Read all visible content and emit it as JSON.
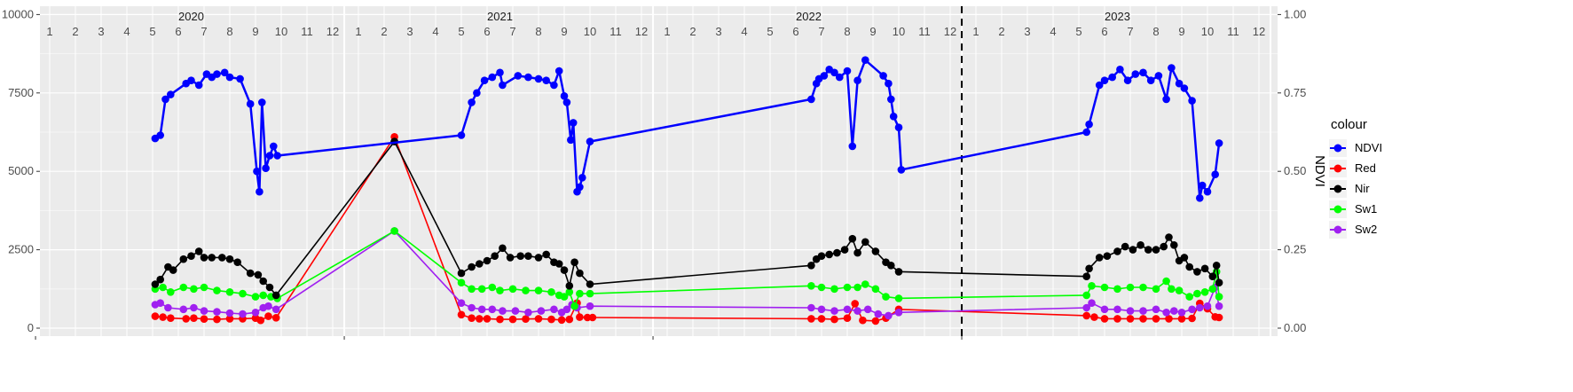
{
  "chart_data": {
    "type": "line",
    "title": "",
    "xlabel": "",
    "ylabel_left": "",
    "ylabel_right": "NDVI",
    "ylim_left": [
      0,
      10000
    ],
    "ylim_right": [
      0.0,
      1.0
    ],
    "yticks_left": [
      "0",
      "2500",
      "5000",
      "7500",
      "10000"
    ],
    "yticks_right": [
      "0.00",
      "0.25",
      "0.50",
      "0.75",
      "1.00"
    ],
    "years": [
      "2020",
      "2021",
      "2022",
      "2023"
    ],
    "months": [
      "1",
      "2",
      "3",
      "4",
      "5",
      "6",
      "7",
      "8",
      "9",
      "10",
      "11",
      "12"
    ],
    "x_unit": "months since Jan 2020",
    "vline_x": 36,
    "grid": true,
    "legend": {
      "title": "colour",
      "position": "right"
    },
    "series": [
      {
        "name": "NDVI",
        "color": "#0000ff",
        "axis": "right",
        "points": [
          [
            4.1,
            0.605
          ],
          [
            4.3,
            0.615
          ],
          [
            4.5,
            0.73
          ],
          [
            4.7,
            0.745
          ],
          [
            5.3,
            0.78
          ],
          [
            5.5,
            0.79
          ],
          [
            5.8,
            0.775
          ],
          [
            6.1,
            0.81
          ],
          [
            6.3,
            0.8
          ],
          [
            6.5,
            0.81
          ],
          [
            6.8,
            0.815
          ],
          [
            7.0,
            0.8
          ],
          [
            7.4,
            0.795
          ],
          [
            7.8,
            0.715
          ],
          [
            8.05,
            0.5
          ],
          [
            8.15,
            0.435
          ],
          [
            8.25,
            0.72
          ],
          [
            8.4,
            0.51
          ],
          [
            8.55,
            0.55
          ],
          [
            8.7,
            0.58
          ],
          [
            8.85,
            0.55
          ],
          [
            16.0,
            0.615
          ],
          [
            16.4,
            0.72
          ],
          [
            16.6,
            0.75
          ],
          [
            16.9,
            0.79
          ],
          [
            17.2,
            0.8
          ],
          [
            17.5,
            0.815
          ],
          [
            17.6,
            0.775
          ],
          [
            18.2,
            0.805
          ],
          [
            18.6,
            0.8
          ],
          [
            19.0,
            0.795
          ],
          [
            19.3,
            0.79
          ],
          [
            19.6,
            0.775
          ],
          [
            19.8,
            0.82
          ],
          [
            20.0,
            0.74
          ],
          [
            20.1,
            0.72
          ],
          [
            20.25,
            0.6
          ],
          [
            20.35,
            0.655
          ],
          [
            20.5,
            0.435
          ],
          [
            20.6,
            0.45
          ],
          [
            20.7,
            0.48
          ],
          [
            21.0,
            0.595
          ],
          [
            29.6,
            0.73
          ],
          [
            29.8,
            0.78
          ],
          [
            29.9,
            0.795
          ],
          [
            30.1,
            0.805
          ],
          [
            30.3,
            0.825
          ],
          [
            30.5,
            0.815
          ],
          [
            30.7,
            0.8
          ],
          [
            31.0,
            0.82
          ],
          [
            31.2,
            0.58
          ],
          [
            31.4,
            0.79
          ],
          [
            31.7,
            0.855
          ],
          [
            32.4,
            0.805
          ],
          [
            32.6,
            0.78
          ],
          [
            32.7,
            0.73
          ],
          [
            32.8,
            0.675
          ],
          [
            33.0,
            0.64
          ],
          [
            33.1,
            0.505
          ],
          [
            40.3,
            0.625
          ],
          [
            40.4,
            0.65
          ],
          [
            40.8,
            0.775
          ],
          [
            41.0,
            0.79
          ],
          [
            41.3,
            0.8
          ],
          [
            41.6,
            0.825
          ],
          [
            41.9,
            0.79
          ],
          [
            42.2,
            0.81
          ],
          [
            42.5,
            0.815
          ],
          [
            42.8,
            0.79
          ],
          [
            43.1,
            0.805
          ],
          [
            43.4,
            0.73
          ],
          [
            43.6,
            0.83
          ],
          [
            43.9,
            0.78
          ],
          [
            44.1,
            0.765
          ],
          [
            44.4,
            0.725
          ],
          [
            44.7,
            0.415
          ],
          [
            44.8,
            0.455
          ],
          [
            45.0,
            0.435
          ],
          [
            45.3,
            0.49
          ],
          [
            45.45,
            0.59
          ]
        ]
      },
      {
        "name": "Red",
        "color": "#ff0000",
        "axis": "left",
        "points": [
          [
            4.1,
            380
          ],
          [
            4.4,
            350
          ],
          [
            4.7,
            320
          ],
          [
            5.3,
            300
          ],
          [
            5.6,
            320
          ],
          [
            6.0,
            290
          ],
          [
            6.5,
            280
          ],
          [
            7.0,
            300
          ],
          [
            7.5,
            300
          ],
          [
            8.0,
            320
          ],
          [
            8.2,
            250
          ],
          [
            8.5,
            380
          ],
          [
            8.8,
            330
          ],
          [
            13.4,
            6100
          ],
          [
            16.0,
            430
          ],
          [
            16.4,
            320
          ],
          [
            16.7,
            300
          ],
          [
            17.0,
            300
          ],
          [
            17.5,
            280
          ],
          [
            18.0,
            280
          ],
          [
            18.5,
            290
          ],
          [
            19.0,
            300
          ],
          [
            19.5,
            280
          ],
          [
            19.9,
            260
          ],
          [
            20.2,
            280
          ],
          [
            20.5,
            800
          ],
          [
            20.6,
            350
          ],
          [
            20.9,
            340
          ],
          [
            21.1,
            340
          ],
          [
            29.6,
            300
          ],
          [
            30.0,
            300
          ],
          [
            30.5,
            280
          ],
          [
            31.0,
            320
          ],
          [
            31.3,
            780
          ],
          [
            31.6,
            250
          ],
          [
            32.1,
            230
          ],
          [
            32.5,
            320
          ],
          [
            33.0,
            600
          ],
          [
            40.3,
            400
          ],
          [
            40.6,
            350
          ],
          [
            41.0,
            300
          ],
          [
            41.5,
            300
          ],
          [
            42.0,
            300
          ],
          [
            42.5,
            300
          ],
          [
            43.0,
            300
          ],
          [
            43.5,
            300
          ],
          [
            44.0,
            300
          ],
          [
            44.4,
            310
          ],
          [
            44.7,
            790
          ],
          [
            45.0,
            620
          ],
          [
            45.3,
            360
          ],
          [
            45.45,
            340
          ]
        ]
      },
      {
        "name": "Nir",
        "color": "#000000",
        "axis": "left",
        "points": [
          [
            4.1,
            1400
          ],
          [
            4.3,
            1550
          ],
          [
            4.6,
            1950
          ],
          [
            4.8,
            1850
          ],
          [
            5.2,
            2200
          ],
          [
            5.5,
            2300
          ],
          [
            5.8,
            2450
          ],
          [
            6.0,
            2250
          ],
          [
            6.3,
            2250
          ],
          [
            6.7,
            2250
          ],
          [
            7.0,
            2200
          ],
          [
            7.3,
            2100
          ],
          [
            7.8,
            1750
          ],
          [
            8.1,
            1700
          ],
          [
            8.3,
            1500
          ],
          [
            8.55,
            1300
          ],
          [
            8.8,
            1050
          ],
          [
            13.4,
            5950
          ],
          [
            16.0,
            1750
          ],
          [
            16.4,
            1950
          ],
          [
            16.7,
            2050
          ],
          [
            17.0,
            2150
          ],
          [
            17.3,
            2300
          ],
          [
            17.6,
            2550
          ],
          [
            17.9,
            2250
          ],
          [
            18.3,
            2300
          ],
          [
            18.6,
            2300
          ],
          [
            19.0,
            2250
          ],
          [
            19.3,
            2350
          ],
          [
            19.6,
            2100
          ],
          [
            19.8,
            2050
          ],
          [
            20.0,
            1850
          ],
          [
            20.2,
            1350
          ],
          [
            20.4,
            2100
          ],
          [
            20.6,
            1750
          ],
          [
            21.0,
            1400
          ],
          [
            29.6,
            2000
          ],
          [
            29.8,
            2200
          ],
          [
            30.0,
            2300
          ],
          [
            30.3,
            2350
          ],
          [
            30.6,
            2400
          ],
          [
            30.9,
            2500
          ],
          [
            31.2,
            2850
          ],
          [
            31.4,
            2400
          ],
          [
            31.7,
            2750
          ],
          [
            32.1,
            2450
          ],
          [
            32.5,
            2100
          ],
          [
            32.7,
            2000
          ],
          [
            33.0,
            1800
          ],
          [
            40.3,
            1650
          ],
          [
            40.4,
            1900
          ],
          [
            40.8,
            2250
          ],
          [
            41.1,
            2300
          ],
          [
            41.5,
            2450
          ],
          [
            41.8,
            2600
          ],
          [
            42.1,
            2500
          ],
          [
            42.4,
            2650
          ],
          [
            42.7,
            2500
          ],
          [
            43.0,
            2500
          ],
          [
            43.3,
            2600
          ],
          [
            43.5,
            2900
          ],
          [
            43.7,
            2650
          ],
          [
            43.9,
            2150
          ],
          [
            44.1,
            2250
          ],
          [
            44.3,
            1950
          ],
          [
            44.6,
            1800
          ],
          [
            44.9,
            1900
          ],
          [
            45.2,
            1650
          ],
          [
            45.35,
            2000
          ],
          [
            45.45,
            1450
          ]
        ]
      },
      {
        "name": "Sw1",
        "color": "#00ff00",
        "axis": "left",
        "points": [
          [
            4.1,
            1250
          ],
          [
            4.4,
            1300
          ],
          [
            4.7,
            1150
          ],
          [
            5.2,
            1300
          ],
          [
            5.6,
            1250
          ],
          [
            6.0,
            1300
          ],
          [
            6.5,
            1200
          ],
          [
            7.0,
            1150
          ],
          [
            7.5,
            1100
          ],
          [
            8.0,
            1000
          ],
          [
            8.3,
            1050
          ],
          [
            8.6,
            1000
          ],
          [
            8.85,
            950
          ],
          [
            13.4,
            3100
          ],
          [
            16.0,
            1450
          ],
          [
            16.4,
            1250
          ],
          [
            16.8,
            1250
          ],
          [
            17.2,
            1300
          ],
          [
            17.5,
            1200
          ],
          [
            18.0,
            1250
          ],
          [
            18.5,
            1200
          ],
          [
            19.0,
            1200
          ],
          [
            19.5,
            1150
          ],
          [
            19.8,
            1050
          ],
          [
            20.0,
            1000
          ],
          [
            20.2,
            1150
          ],
          [
            20.4,
            700
          ],
          [
            20.6,
            1100
          ],
          [
            21.0,
            1100
          ],
          [
            29.6,
            1350
          ],
          [
            30.0,
            1300
          ],
          [
            30.5,
            1250
          ],
          [
            31.0,
            1300
          ],
          [
            31.4,
            1300
          ],
          [
            31.7,
            1400
          ],
          [
            32.1,
            1250
          ],
          [
            32.5,
            1000
          ],
          [
            33.0,
            950
          ],
          [
            40.3,
            1050
          ],
          [
            40.5,
            1350
          ],
          [
            41.0,
            1300
          ],
          [
            41.5,
            1250
          ],
          [
            42.0,
            1300
          ],
          [
            42.5,
            1300
          ],
          [
            43.0,
            1250
          ],
          [
            43.4,
            1500
          ],
          [
            43.6,
            1250
          ],
          [
            43.9,
            1200
          ],
          [
            44.3,
            1000
          ],
          [
            44.6,
            1100
          ],
          [
            44.9,
            1150
          ],
          [
            45.2,
            1250
          ],
          [
            45.35,
            1800
          ],
          [
            45.45,
            1000
          ]
        ]
      },
      {
        "name": "Sw2",
        "color": "#a020f0",
        "axis": "left",
        "points": [
          [
            4.1,
            750
          ],
          [
            4.3,
            800
          ],
          [
            4.6,
            650
          ],
          [
            5.2,
            600
          ],
          [
            5.6,
            650
          ],
          [
            6.0,
            550
          ],
          [
            6.5,
            520
          ],
          [
            7.0,
            480
          ],
          [
            7.5,
            450
          ],
          [
            8.0,
            500
          ],
          [
            8.3,
            650
          ],
          [
            8.5,
            700
          ],
          [
            8.8,
            600
          ],
          [
            13.4,
            3100
          ],
          [
            16.0,
            800
          ],
          [
            16.4,
            650
          ],
          [
            16.8,
            600
          ],
          [
            17.2,
            600
          ],
          [
            17.6,
            550
          ],
          [
            18.1,
            550
          ],
          [
            18.6,
            500
          ],
          [
            19.1,
            550
          ],
          [
            19.6,
            600
          ],
          [
            19.9,
            500
          ],
          [
            20.1,
            600
          ],
          [
            20.3,
            750
          ],
          [
            20.5,
            650
          ],
          [
            21.0,
            700
          ],
          [
            29.6,
            650
          ],
          [
            30.0,
            600
          ],
          [
            30.5,
            550
          ],
          [
            31.0,
            600
          ],
          [
            31.4,
            550
          ],
          [
            31.8,
            600
          ],
          [
            32.2,
            450
          ],
          [
            32.6,
            400
          ],
          [
            33.0,
            500
          ],
          [
            40.3,
            650
          ],
          [
            40.5,
            800
          ],
          [
            41.0,
            600
          ],
          [
            41.5,
            600
          ],
          [
            42.0,
            550
          ],
          [
            42.5,
            550
          ],
          [
            43.0,
            600
          ],
          [
            43.4,
            500
          ],
          [
            43.7,
            550
          ],
          [
            44.0,
            500
          ],
          [
            44.4,
            600
          ],
          [
            44.7,
            650
          ],
          [
            45.0,
            700
          ],
          [
            45.3,
            1300
          ],
          [
            45.45,
            700
          ]
        ]
      }
    ]
  }
}
